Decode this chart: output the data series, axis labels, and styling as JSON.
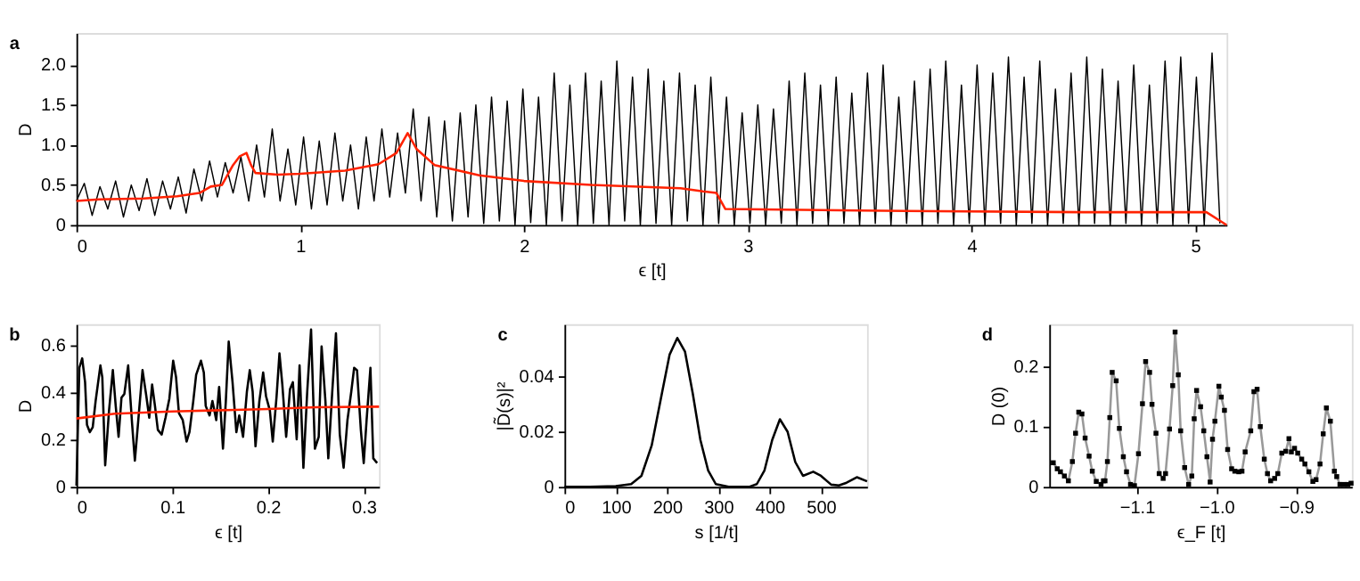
{
  "chart_data": [
    {
      "type": "line",
      "title": "a",
      "xlabel": "ϵ [t]",
      "ylabel": "D",
      "xlim": [
        0,
        5.14
      ],
      "ylim": [
        0,
        2.4
      ],
      "xticks": [
        0,
        1,
        2,
        3,
        4,
        5
      ],
      "yticks": [
        0,
        0.5,
        {
          "value": 1,
          "label": "1.0"
        },
        1.5,
        {
          "value": 2,
          "label": "2.0"
        }
      ],
      "series": [
        {
          "color": "#000000",
          "x": [
            0,
            0.035,
            0.07,
            0.105,
            0.14,
            0.175,
            0.21,
            0.245,
            0.28,
            0.315,
            0.35,
            0.385,
            0.42,
            0.455,
            0.49,
            0.525,
            0.56,
            0.595,
            0.63,
            0.665,
            0.7,
            0.735,
            0.77,
            0.805,
            0.84,
            0.875,
            0.91,
            0.945,
            0.98,
            1.015,
            1.05,
            1.085,
            1.12,
            1.155,
            1.19,
            1.225,
            1.26,
            1.295,
            1.33,
            1.365,
            1.4,
            1.435,
            1.47,
            1.505,
            1.54,
            1.575,
            1.61,
            1.645,
            1.68,
            1.715,
            1.75,
            1.785,
            1.82,
            1.855,
            1.89,
            1.925,
            1.96,
            1.995,
            2.03,
            2.065,
            2.1,
            2.135,
            2.17,
            2.205,
            2.24,
            2.275,
            2.31,
            2.345,
            2.38,
            2.415,
            2.45,
            2.485,
            2.52,
            2.555,
            2.59,
            2.625,
            2.66,
            2.695,
            2.73,
            2.765,
            2.8,
            2.835,
            2.87,
            2.905,
            2.94,
            2.975,
            3.01,
            3.045,
            3.08,
            3.115,
            3.15,
            3.185,
            3.22,
            3.255,
            3.29,
            3.325,
            3.36,
            3.395,
            3.43,
            3.465,
            3.5,
            3.535,
            3.57,
            3.605,
            3.64,
            3.675,
            3.71,
            3.745,
            3.78,
            3.815,
            3.85,
            3.885,
            3.92,
            3.955,
            3.99,
            4.025,
            4.06,
            4.095,
            4.13,
            4.165,
            4.2,
            4.235,
            4.27,
            4.305,
            4.34,
            4.375,
            4.41,
            4.445,
            4.48,
            4.515,
            4.55,
            4.585,
            4.62,
            4.655,
            4.69,
            4.725,
            4.76,
            4.795,
            4.83,
            4.865,
            4.9,
            4.935,
            4.97,
            5.005,
            5.04,
            5.075,
            5.11
          ],
          "values": [
            0.3,
            0.52,
            0.12,
            0.48,
            0.2,
            0.55,
            0.1,
            0.5,
            0.18,
            0.58,
            0.12,
            0.55,
            0.2,
            0.6,
            0.15,
            0.7,
            0.3,
            0.8,
            0.35,
            0.78,
            0.4,
            0.85,
            0.3,
            1.0,
            0.35,
            1.2,
            0.3,
            0.95,
            0.25,
            1.1,
            0.2,
            1.05,
            0.25,
            1.15,
            0.3,
            1.0,
            0.2,
            1.1,
            0.3,
            1.2,
            0.35,
            1.15,
            0.4,
            1.45,
            0.3,
            1.35,
            0.1,
            1.3,
            0.05,
            1.4,
            0.1,
            1.5,
            0.02,
            1.6,
            0.05,
            1.55,
            0,
            1.7,
            0.03,
            1.6,
            0,
            1.9,
            0.05,
            1.75,
            0,
            1.9,
            0.02,
            1.8,
            0,
            2.05,
            0.05,
            1.85,
            0,
            1.95,
            0.02,
            1.8,
            0,
            1.9,
            0.05,
            1.75,
            0,
            1.85,
            0.02,
            1.6,
            0,
            1.4,
            0.02,
            1.5,
            0,
            1.45,
            0.02,
            1.8,
            0,
            1.9,
            0.02,
            1.75,
            0,
            1.85,
            0.02,
            1.65,
            0,
            1.9,
            0.02,
            2.0,
            0,
            1.6,
            0.02,
            1.8,
            0,
            1.95,
            0.02,
            2.05,
            0,
            1.75,
            0.02,
            2.0,
            0,
            1.9,
            0.02,
            2.1,
            0,
            1.85,
            0.02,
            2.05,
            0,
            1.7,
            0.02,
            1.9,
            0,
            2.1,
            0.02,
            1.95,
            0,
            1.8,
            0.02,
            2.0,
            0,
            1.75,
            0.02,
            2.05,
            0,
            2.1,
            0.02,
            1.85,
            0,
            2.15,
            0.02
          ]
        },
        {
          "color": "#ff2200",
          "x": [
            0,
            0.1,
            0.3,
            0.45,
            0.55,
            0.6,
            0.65,
            0.7,
            0.73,
            0.76,
            0.78,
            0.8,
            0.9,
            1.0,
            1.2,
            1.35,
            1.43,
            1.48,
            1.52,
            1.6,
            1.8,
            2.0,
            2.3,
            2.7,
            2.8,
            2.86,
            2.9,
            3.5,
            4.5,
            5.05,
            5.14
          ],
          "values": [
            0.3,
            0.32,
            0.33,
            0.36,
            0.4,
            0.48,
            0.5,
            0.75,
            0.86,
            0.9,
            0.75,
            0.65,
            0.63,
            0.64,
            0.68,
            0.76,
            0.9,
            1.15,
            0.95,
            0.75,
            0.62,
            0.55,
            0.5,
            0.46,
            0.42,
            0.4,
            0.2,
            0.18,
            0.16,
            0.16,
            0
          ]
        }
      ]
    },
    {
      "type": "line",
      "title": "b",
      "xlabel": "ϵ [t]",
      "ylabel": "D",
      "xlim": [
        0,
        0.316
      ],
      "ylim": [
        0,
        0.69
      ],
      "xticks": [
        0,
        0.1,
        0.2,
        0.3
      ],
      "yticks": [
        0,
        0.2,
        0.4,
        0.6
      ],
      "series": [
        {
          "color": "#000000",
          "x": [
            0,
            0.003,
            0.006,
            0.009,
            0.011,
            0.014,
            0.017,
            0.02,
            0.025,
            0.027,
            0.03,
            0.034,
            0.038,
            0.041,
            0.044,
            0.047,
            0.05,
            0.054,
            0.058,
            0.061,
            0.065,
            0.069,
            0.073,
            0.076,
            0.079,
            0.082,
            0.085,
            0.089,
            0.093,
            0.097,
            0.101,
            0.104,
            0.107,
            0.111,
            0.115,
            0.118,
            0.122,
            0.125,
            0.13,
            0.133,
            0.135,
            0.139,
            0.142,
            0.146,
            0.149,
            0.153,
            0.156,
            0.159,
            0.163,
            0.167,
            0.17,
            0.174,
            0.178,
            0.181,
            0.184,
            0.187,
            0.191,
            0.195,
            0.198,
            0.202,
            0.205,
            0.209,
            0.212,
            0.215,
            0.219,
            0.223,
            0.226,
            0.23,
            0.233,
            0.237,
            0.241,
            0.245,
            0.249,
            0.253,
            0.256,
            0.26,
            0.263,
            0.267,
            0.271,
            0.275,
            0.279,
            0.283,
            0.287,
            0.29,
            0.293,
            0.297,
            0.3,
            0.303,
            0.307,
            0.31,
            0.314
          ],
          "values": [
            0.005,
            0.505,
            0.545,
            0.444,
            0.263,
            0.232,
            0.253,
            0.364,
            0.515,
            0.465,
            0.091,
            0.323,
            0.495,
            0.343,
            0.212,
            0.378,
            0.394,
            0.515,
            0.273,
            0.111,
            0.303,
            0.495,
            0.384,
            0.293,
            0.434,
            0.343,
            0.242,
            0.222,
            0.293,
            0.374,
            0.535,
            0.465,
            0.313,
            0.283,
            0.192,
            0.232,
            0.364,
            0.475,
            0.535,
            0.485,
            0.343,
            0.303,
            0.364,
            0.283,
            0.424,
            0.162,
            0.364,
            0.616,
            0.444,
            0.232,
            0.303,
            0.212,
            0.404,
            0.495,
            0.404,
            0.172,
            0.364,
            0.485,
            0.384,
            0.323,
            0.192,
            0.384,
            0.566,
            0.434,
            0.212,
            0.414,
            0.444,
            0.202,
            0.515,
            0.081,
            0.404,
            0.667,
            0.162,
            0.212,
            0.596,
            0.364,
            0.121,
            0.394,
            0.651,
            0.222,
            0.081,
            0.283,
            0.404,
            0.505,
            0.495,
            0.242,
            0.101,
            0.283,
            0.505,
            0.121,
            0.101
          ]
        },
        {
          "color": "#ff2200",
          "x": [
            0,
            0.04,
            0.1,
            0.2,
            0.25,
            0.316
          ],
          "values": [
            0.29,
            0.31,
            0.32,
            0.33,
            0.338,
            0.34
          ]
        }
      ]
    },
    {
      "type": "line",
      "title": "c",
      "xlabel": "s [1/t]",
      "ylabel": "|D̃(s)|²",
      "xlim": [
        0,
        590
      ],
      "ylim": [
        0,
        0.059
      ],
      "xticks": [
        0,
        100,
        200,
        300,
        400,
        500
      ],
      "yticks": [
        0,
        0.02,
        0.04
      ],
      "series": [
        {
          "color": "#000000",
          "x": [
            0,
            50,
            100,
            130,
            150,
            170,
            190,
            205,
            220,
            235,
            250,
            265,
            280,
            295,
            320,
            360,
            375,
            390,
            405,
            420,
            435,
            450,
            465,
            485,
            500,
            520,
            535,
            550,
            570,
            590
          ],
          "values": [
            0,
            0,
            0.0003,
            0.001,
            0.004,
            0.015,
            0.034,
            0.048,
            0.054,
            0.049,
            0.034,
            0.017,
            0.006,
            0.001,
            0,
            0,
            0.001,
            0.006,
            0.017,
            0.0245,
            0.02,
            0.009,
            0.004,
            0.0055,
            0.004,
            0.0008,
            0.0005,
            0.0015,
            0.0035,
            0.002
          ]
        }
      ]
    },
    {
      "type": "line",
      "title": "d",
      "xlabel": "ϵ_F [t]",
      "ylabel": "D (0)",
      "xlim": [
        -1.21,
        -0.83
      ],
      "ylim": [
        0,
        0.27
      ],
      "xticks": [
        -1.1,
        {
          "value": -1.0,
          "label": "−1.0"
        },
        -0.9
      ],
      "yticks": [
        0,
        0.1,
        0.2
      ],
      "marker": "square",
      "series": [
        {
          "color": "#000000",
          "x": [
            -1.205,
            -1.2,
            -1.196,
            -1.191,
            -1.186,
            -1.181,
            -1.177,
            -1.173,
            -1.169,
            -1.165,
            -1.16,
            -1.156,
            -1.151,
            -1.145,
            -1.142,
            -1.14,
            -1.137,
            -1.134,
            -1.131,
            -1.126,
            -1.122,
            -1.117,
            -1.113,
            -1.108,
            -1.103,
            -1.098,
            -1.093,
            -1.089,
            -1.084,
            -1.081,
            -1.076,
            -1.072,
            -1.067,
            -1.064,
            -1.059,
            -1.055,
            -1.052,
            -1.048,
            -1.045,
            -1.04,
            -1.035,
            -1.031,
            -1.028,
            -1.025,
            -1.02,
            -1.016,
            -1.012,
            -1.008,
            -1.005,
            -1.002,
            -0.997,
            -0.994,
            -0.99,
            -0.986,
            -0.981,
            -0.977,
            -0.972,
            -0.968,
            -0.964,
            -0.957,
            -0.953,
            -0.949,
            -0.945,
            -0.94,
            -0.936,
            -0.932,
            -0.927,
            -0.923,
            -0.918,
            -0.913,
            -0.909,
            -0.906,
            -0.902,
            -0.898,
            -0.893,
            -0.889,
            -0.884,
            -0.879,
            -0.875,
            -0.87,
            -0.866,
            -0.862,
            -0.857,
            -0.852,
            -0.849,
            -0.845,
            -0.84,
            -0.835,
            -0.831
          ],
          "values": [
            0.04,
            0.03,
            0.025,
            0.018,
            0.01,
            0.042,
            0.089,
            0.124,
            0.121,
            0.081,
            0.051,
            0.026,
            0.009,
            0.004,
            0.01,
            0.01,
            0.042,
            0.115,
            0.19,
            0.176,
            0.097,
            0.05,
            0.025,
            0.004,
            0.002,
            0.055,
            0.138,
            0.208,
            0.19,
            0.137,
            0.089,
            0.022,
            0.014,
            0.022,
            0.096,
            0.168,
            0.257,
            0.186,
            0.093,
            0.032,
            0.004,
            0.018,
            0.113,
            0.16,
            0.133,
            0.093,
            0.05,
            0.008,
            0.079,
            0.109,
            0.167,
            0.149,
            0.127,
            0.062,
            0.03,
            0.026,
            0.025,
            0.026,
            0.058,
            0.093,
            0.158,
            0.162,
            0.1,
            0.046,
            0.022,
            0.01,
            0.014,
            0.022,
            0.056,
            0.059,
            0.08,
            0.058,
            0.064,
            0.056,
            0.046,
            0.038,
            0.025,
            0.009,
            0.012,
            0.038,
            0.088,
            0.131,
            0.109,
            0.026,
            0.017,
            0.004,
            0.004,
            0.004,
            0.006
          ]
        }
      ]
    }
  ]
}
